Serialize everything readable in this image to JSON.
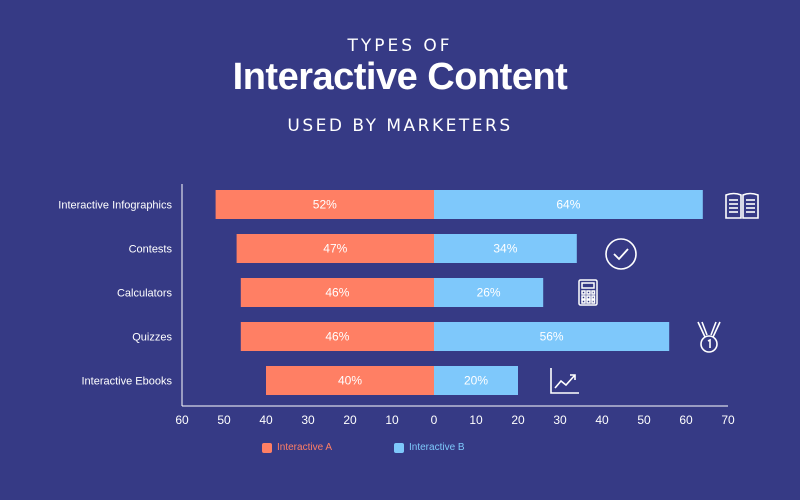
{
  "header": {
    "pre_title": "TYPES OF",
    "title": "Interactive Content",
    "subtitle": "USED BY MARKETERS"
  },
  "colors": {
    "background": "#363a85",
    "series_a": "#ff7f64",
    "series_b": "#7ec8fb",
    "axis": "#ffffff"
  },
  "chart_data": {
    "type": "bar",
    "orientation": "horizontal-diverging",
    "categories": [
      "Interactive Infographics",
      "Contests",
      "Calculators",
      "Quizzes",
      "Interactive Ebooks"
    ],
    "series": [
      {
        "name": "Interactive A",
        "values": [
          52,
          47,
          46,
          46,
          40
        ],
        "labels": [
          "52%",
          "47%",
          "46%",
          "46%",
          "40%"
        ],
        "direction": "left"
      },
      {
        "name": "Interactive B",
        "values": [
          64,
          34,
          26,
          56,
          20
        ],
        "labels": [
          "64%",
          "34%",
          "26%",
          "56%",
          "20%"
        ],
        "direction": "right"
      }
    ],
    "xlim": [
      -60,
      70
    ],
    "x_ticks": [
      -60,
      -50,
      -40,
      -30,
      -20,
      -10,
      0,
      10,
      20,
      30,
      40,
      50,
      60,
      70
    ],
    "x_tick_labels": [
      "60",
      "50",
      "40",
      "30",
      "20",
      "10",
      "0",
      "10",
      "20",
      "30",
      "40",
      "50",
      "60",
      "70"
    ],
    "grid": false,
    "legend_position": "bottom-center",
    "category_icons": [
      "book-icon",
      "checkmark-circle-icon",
      "calculator-icon",
      "medal-icon",
      "trend-chart-icon"
    ]
  }
}
